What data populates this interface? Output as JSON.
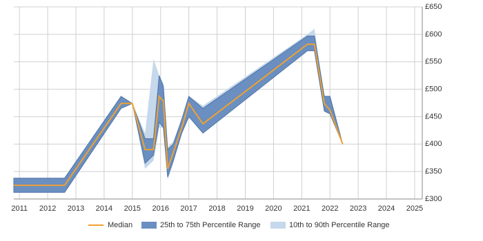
{
  "chart_data": {
    "type": "line",
    "x": [
      2010.8,
      2012.6,
      2014.6,
      2015.0,
      2015.45,
      2015.75,
      2015.95,
      2016.1,
      2016.25,
      2016.45,
      2016.75,
      2017.0,
      2017.5,
      2021.2,
      2021.45,
      2021.8,
      2022.0,
      2022.45
    ],
    "series": [
      {
        "name": "Median",
        "color": "#f0a030",
        "values": [
          325,
          325,
          474,
          474,
          390,
          390,
          487,
          478,
          355,
          385,
          430,
          474,
          437,
          582,
          582,
          474,
          462,
          400
        ]
      }
    ],
    "bands": [
      {
        "name": "10th to 90th Percentile Range",
        "color": "#c6d8eb",
        "lower": [
          312,
          312,
          465,
          474,
          355,
          370,
          430,
          430,
          335,
          365,
          420,
          450,
          420,
          570,
          570,
          460,
          455,
          400
        ],
        "upper": [
          338,
          338,
          487,
          474,
          420,
          555,
          525,
          510,
          395,
          405,
          445,
          487,
          470,
          600,
          610,
          487,
          487,
          400
        ]
      },
      {
        "name": "25th to 75th Percentile Range",
        "color": "#6a8fc0",
        "lower": [
          312,
          312,
          465,
          474,
          365,
          380,
          440,
          430,
          340,
          370,
          420,
          450,
          420,
          570,
          570,
          460,
          455,
          400
        ],
        "upper": [
          338,
          338,
          487,
          474,
          410,
          410,
          525,
          505,
          390,
          400,
          445,
          487,
          465,
          597,
          597,
          487,
          487,
          400
        ]
      }
    ],
    "xlim": [
      2010.8,
      2025.27
    ],
    "xticks": [
      2011,
      2012,
      2013,
      2014,
      2015,
      2016,
      2017,
      2018,
      2019,
      2020,
      2021,
      2022,
      2023,
      2024,
      2025
    ],
    "ylim": [
      300,
      650
    ],
    "yticks": [
      {
        "value": 300,
        "label": "£300"
      },
      {
        "value": 350,
        "label": "£350"
      },
      {
        "value": 400,
        "label": "£400"
      },
      {
        "value": 450,
        "label": "£450"
      },
      {
        "value": 500,
        "label": "£500"
      },
      {
        "value": 550,
        "label": "£550"
      },
      {
        "value": 600,
        "label": "£600"
      },
      {
        "value": 650,
        "label": "£650"
      }
    ],
    "grid": true
  }
}
